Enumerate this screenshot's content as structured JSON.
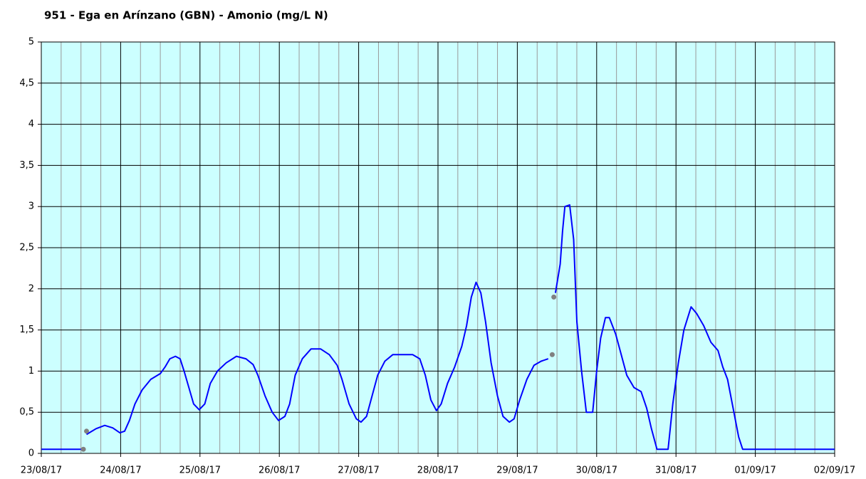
{
  "chart_data": {
    "type": "line",
    "title": "951 - Ega en Arínzano (GBN) - Amonio (mg/L N)",
    "xlim": [
      0,
      10
    ],
    "xticks": [
      {
        "value": 0,
        "label": "23/08/17"
      },
      {
        "value": 1,
        "label": "24/08/17"
      },
      {
        "value": 2,
        "label": "25/08/17"
      },
      {
        "value": 3,
        "label": "26/08/17"
      },
      {
        "value": 4,
        "label": "27/08/17"
      },
      {
        "value": 5,
        "label": "28/08/17"
      },
      {
        "value": 6,
        "label": "29/08/17"
      },
      {
        "value": 7,
        "label": "30/08/17"
      },
      {
        "value": 8,
        "label": "31/08/17"
      },
      {
        "value": 9,
        "label": "01/09/17"
      },
      {
        "value": 10,
        "label": "02/09/17"
      }
    ],
    "ylim": [
      0,
      5
    ],
    "yticks": [
      0,
      {
        "value": 0.5,
        "label": "0,5"
      },
      1,
      {
        "value": 1.5,
        "label": "1,5"
      },
      2,
      {
        "value": 2.5,
        "label": "2,5"
      },
      3,
      {
        "value": 3.5,
        "label": "3,5"
      },
      4,
      {
        "value": 4.5,
        "label": "4,5"
      },
      5
    ],
    "grid": true,
    "background": "#ccffff",
    "series": [
      {
        "color": "#0000ff",
        "marker": false,
        "x": [
          0,
          0.53,
          0.55,
          0.57,
          0.69,
          0.8,
          0.9,
          0.99,
          1.05,
          1.11,
          1.18,
          1.27,
          1.38,
          1.5,
          1.56,
          1.62,
          1.69,
          1.75,
          1.8,
          1.86,
          1.92,
          1.99,
          2.06,
          2.13,
          2.22,
          2.33,
          2.46,
          2.58,
          2.67,
          2.73,
          2.82,
          2.91,
          2.99,
          3.07,
          3.13,
          3.2,
          3.29,
          3.4,
          3.52,
          3.63,
          3.73,
          3.79,
          3.88,
          3.97,
          4.03,
          4.1,
          4.17,
          4.24,
          4.33,
          4.43,
          4.55,
          4.68,
          4.77,
          4.84,
          4.91,
          4.98,
          5.04,
          5.12,
          5.21,
          5.3,
          5.36,
          5.42,
          5.48,
          5.54,
          5.6,
          5.67,
          5.75,
          5.82,
          5.9,
          5.96,
          6.03,
          6.12,
          6.21,
          6.3,
          6.39,
          6.44,
          6.48,
          6.54,
          6.57,
          6.6,
          6.66,
          6.71,
          6.75,
          6.81,
          6.87,
          6.95,
          7.0,
          7.05,
          7.11,
          7.16,
          7.24,
          7.31,
          7.38,
          7.47,
          7.56,
          7.63,
          7.69,
          7.76,
          7.9,
          7.96,
          8.03,
          8.1,
          8.19,
          8.26,
          8.35,
          8.44,
          8.53,
          8.59,
          8.65,
          8.73,
          8.79,
          8.84,
          10
        ],
        "values": [
          0.05,
          0.05,
          null,
          0.23,
          0.3,
          0.34,
          0.31,
          0.25,
          0.27,
          0.4,
          0.6,
          0.77,
          0.9,
          0.97,
          1.05,
          1.15,
          1.18,
          1.15,
          1.0,
          0.8,
          0.6,
          0.53,
          0.6,
          0.85,
          1.0,
          1.1,
          1.18,
          1.15,
          1.08,
          0.95,
          0.7,
          0.5,
          0.4,
          0.45,
          0.6,
          0.95,
          1.15,
          1.27,
          1.27,
          1.2,
          1.07,
          0.9,
          0.6,
          0.42,
          0.38,
          0.45,
          0.7,
          0.95,
          1.12,
          1.2,
          1.2,
          1.2,
          1.15,
          0.95,
          0.65,
          0.52,
          0.6,
          0.85,
          1.05,
          1.3,
          1.55,
          1.9,
          2.08,
          1.95,
          1.6,
          1.1,
          0.7,
          0.45,
          0.38,
          0.42,
          0.65,
          0.9,
          1.07,
          1.12,
          1.15,
          null,
          1.95,
          2.3,
          2.7,
          3.0,
          3.02,
          2.6,
          1.6,
          1.0,
          0.5,
          0.5,
          1.0,
          1.4,
          1.65,
          1.65,
          1.45,
          1.2,
          0.95,
          0.8,
          0.75,
          0.55,
          0.3,
          0.05,
          0.05,
          0.6,
          1.1,
          1.5,
          1.78,
          1.7,
          1.55,
          1.35,
          1.25,
          1.05,
          0.9,
          0.5,
          0.2,
          0.05,
          0.05
        ]
      },
      {
        "color": "#808080",
        "marker": true,
        "x": [
          0.53,
          0.57,
          6.44,
          6.46
        ],
        "values": [
          0.05,
          0.27,
          1.2,
          1.9
        ]
      }
    ]
  }
}
